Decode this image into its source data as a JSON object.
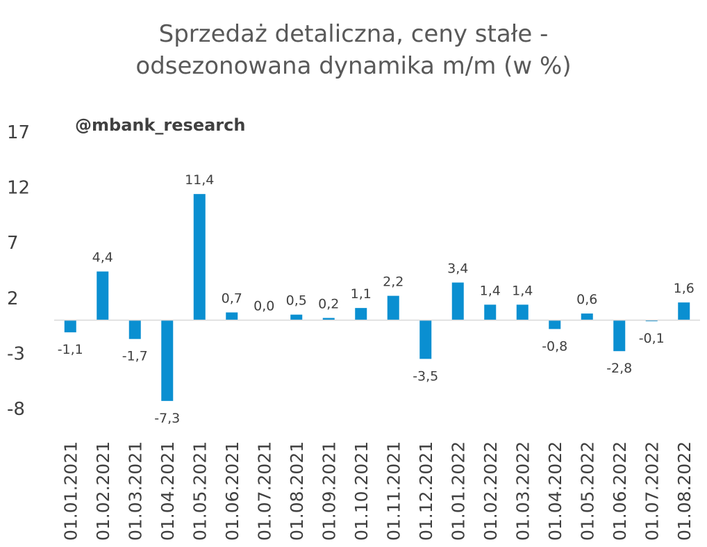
{
  "chart_data": {
    "type": "bar",
    "title_lines": [
      "Sprzedaż detaliczna, ceny stałe -",
      "odsezonowana dynamika m/m (w %)"
    ],
    "watermark": "@mbank_research",
    "categories": [
      "01.01.2021",
      "01.02.2021",
      "01.03.2021",
      "01.04.2021",
      "01.05.2021",
      "01.06.2021",
      "01.07.2021",
      "01.08.2021",
      "01.09.2021",
      "01.10.2021",
      "01.11.2021",
      "01.12.2021",
      "01.01.2022",
      "01.02.2022",
      "01.03.2022",
      "01.04.2022",
      "01.05.2022",
      "01.06.2022",
      "01.07.2022",
      "01.08.2022"
    ],
    "values": [
      -1.1,
      4.4,
      -1.7,
      -7.3,
      11.4,
      0.7,
      0.0,
      0.5,
      0.2,
      1.1,
      2.2,
      -3.5,
      3.4,
      1.4,
      1.4,
      -0.8,
      0.6,
      -2.8,
      -0.1,
      1.6
    ],
    "data_labels": [
      "-1,1",
      "4,4",
      "-1,7",
      "-7,3",
      "11,4",
      "0,7",
      "0,0",
      "0,5",
      "0,2",
      "1,1",
      "2,2",
      "-3,5",
      "3,4",
      "1,4",
      "1,4",
      "-0,8",
      "0,6",
      "-2,8",
      "-0,1",
      "1,6"
    ],
    "ytick_labels": [
      "17",
      "12",
      "7",
      "2",
      "-3",
      "-8"
    ],
    "ytick_values": [
      17,
      12,
      7,
      2,
      -3,
      -8
    ],
    "ylim": [
      -8,
      17
    ],
    "xlabel": "",
    "ylabel": "",
    "grid": false,
    "bar_color": "#0a8fd1"
  }
}
